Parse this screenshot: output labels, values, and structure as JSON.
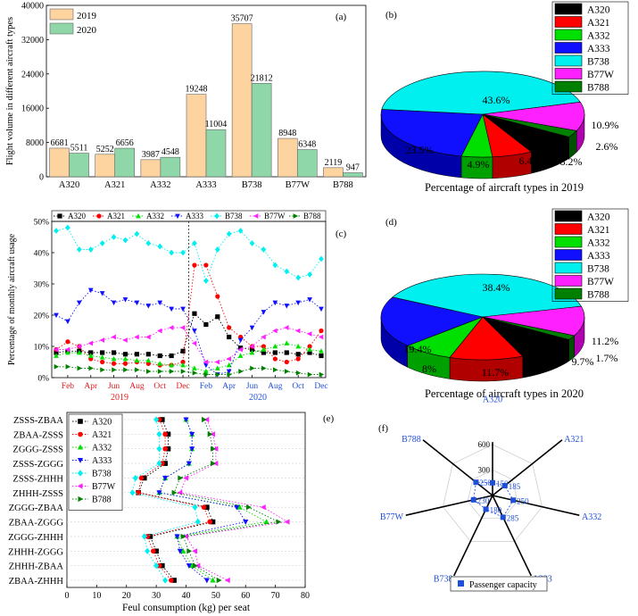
{
  "aircraft": [
    "A320",
    "A321",
    "A332",
    "A333",
    "B738",
    "B77W",
    "B788"
  ],
  "colors": {
    "bar2019": "#fdd3a0",
    "bar2020": "#8fd7a9",
    "types": {
      "A320": "#000000",
      "A321": "#ff0000",
      "A332": "#00e000",
      "A333": "#1010ff",
      "B738": "#00f0f0",
      "B77W": "#ff20ff",
      "B788": "#008000"
    },
    "radar": "#1f4fd8",
    "blueText": "#1f4fd8",
    "redText": "#e0191d"
  },
  "chart_data": [
    {
      "id": "a",
      "panel_label": "(a)",
      "type": "bar",
      "ylabel": "Flight volume in different aircraft types",
      "categories": [
        "A320",
        "A321",
        "A332",
        "A333",
        "B738",
        "B77W",
        "B788"
      ],
      "ylim": [
        0,
        40000
      ],
      "yticks": [
        "0",
        "8000",
        "16000",
        "24000",
        "32000",
        "40000"
      ],
      "series": [
        {
          "name": "2019",
          "values": [
            6681,
            5252,
            3987,
            19248,
            35707,
            8948,
            2119
          ],
          "labels": [
            "6681",
            "5252",
            "3987",
            "19248",
            "35707",
            "8948",
            "2119"
          ]
        },
        {
          "name": "2020",
          "values": [
            5511,
            6656,
            4548,
            11004,
            21812,
            6348,
            947
          ],
          "labels": [
            "5511",
            "6656",
            "4548",
            "11004",
            "21812",
            "6348",
            "947"
          ]
        }
      ]
    },
    {
      "id": "b",
      "panel_label": "(b)",
      "type": "pie",
      "title": "Percentage of aircraft types in 2019",
      "labels": [
        "A320",
        "A321",
        "A332",
        "A333",
        "B738",
        "B77W",
        "B788"
      ],
      "values": [
        8.2,
        6.4,
        4.9,
        23.5,
        43.6,
        10.9,
        2.6
      ],
      "value_labels": [
        "8.2%",
        "6.4%",
        "4.9%",
        "23.5%",
        "43.6%",
        "10.9%",
        "2.6%"
      ]
    },
    {
      "id": "c",
      "panel_label": "(c)",
      "type": "line",
      "ylabel": "Percentage of monthly aircraft usage",
      "ylim": [
        0,
        50
      ],
      "yticks": [
        "0%",
        "10%",
        "20%",
        "30%",
        "40%",
        "50%"
      ],
      "xticks": [
        "Feb",
        "Apr",
        "Jun",
        "Aug",
        "Oct",
        "Dec",
        "Feb",
        "Apr",
        "Jun",
        "Aug",
        "Oct",
        "Dec"
      ],
      "year_labels": [
        "2019",
        "2020"
      ],
      "series": [
        {
          "name": "A320",
          "values": [
            8,
            8.5,
            8.5,
            8,
            8,
            8,
            7.5,
            7.5,
            7.5,
            7,
            7,
            8.5,
            20.5,
            17,
            19.5,
            13,
            9.5,
            9,
            8,
            8,
            8,
            7.5,
            8,
            7
          ]
        },
        {
          "name": "A321",
          "values": [
            9,
            11.5,
            10,
            6,
            5,
            4.5,
            4.5,
            5,
            4.5,
            4,
            4,
            5,
            36,
            36,
            26,
            16,
            13,
            10,
            10,
            6,
            5,
            6,
            10,
            15
          ]
        },
        {
          "name": "A332",
          "values": [
            7,
            8,
            8,
            7,
            6.5,
            6,
            6,
            5.5,
            5.5,
            4.5,
            4,
            4,
            3,
            2,
            3,
            4,
            7,
            8,
            9,
            10,
            11,
            10,
            9,
            8.5
          ]
        },
        {
          "name": "A333",
          "values": [
            20,
            18,
            24,
            28,
            27,
            24,
            25,
            24,
            23,
            24,
            22,
            22,
            15,
            4,
            1,
            2,
            12,
            16,
            21,
            24,
            23,
            24,
            25,
            22
          ]
        },
        {
          "name": "B738",
          "values": [
            47,
            48,
            41,
            41,
            43,
            45,
            44,
            46,
            43,
            42,
            40,
            40,
            43,
            31,
            41,
            46,
            47,
            43,
            41,
            36,
            34,
            32,
            33,
            38
          ]
        },
        {
          "name": "B77W",
          "values": [
            9,
            9,
            10,
            11,
            12,
            13,
            12,
            13,
            13,
            15,
            16,
            16,
            11,
            5,
            5,
            6,
            9,
            10,
            13,
            15,
            16,
            15,
            14,
            13
          ]
        },
        {
          "name": "B788",
          "values": [
            3.5,
            3.5,
            3,
            3,
            2.5,
            2.5,
            2.5,
            2.5,
            2,
            2,
            2,
            2,
            1.5,
            1,
            1,
            1,
            2,
            3,
            3,
            2.5,
            2,
            1.5,
            1,
            1
          ]
        }
      ]
    },
    {
      "id": "d",
      "panel_label": "(d)",
      "type": "pie",
      "title": "Percentage of aircraft types in 2020",
      "labels": [
        "A320",
        "A321",
        "A332",
        "A333",
        "B738",
        "B77W",
        "B788"
      ],
      "values": [
        9.7,
        11.7,
        8,
        19.4,
        38.4,
        11.2,
        1.7
      ],
      "value_labels": [
        "9.7%",
        "11.7%",
        "8%",
        "19.4%",
        "38.4%",
        "11.2%",
        "1.7%"
      ]
    },
    {
      "id": "e",
      "panel_label": "(e)",
      "type": "line",
      "xlabel": "Feul consumption (kg) per seat",
      "xlim": [
        0,
        80
      ],
      "xticks": [
        "0",
        "10",
        "20",
        "30",
        "40",
        "50",
        "60",
        "70",
        "80"
      ],
      "routes": [
        "ZSSS-ZBAA",
        "ZBAA-ZSSS",
        "ZGGG-ZSSS",
        "ZSSS-ZGGG",
        "ZSSS-ZHHH",
        "ZHHH-ZSSS",
        "ZGGG-ZBAA",
        "ZBAA-ZGGG",
        "ZGGG-ZHHH",
        "ZHHH-ZGGG",
        "ZHHH-ZBAA",
        "ZBAA-ZHHH"
      ],
      "series": [
        {
          "name": "A320",
          "values": [
            32,
            34,
            34,
            33,
            26,
            24,
            47,
            49,
            28,
            30,
            32,
            36
          ]
        },
        {
          "name": "A321",
          "values": [
            31,
            33,
            33,
            32,
            25,
            24,
            46,
            48,
            27,
            29,
            31,
            35
          ]
        },
        {
          "name": "A332",
          "values": [
            40,
            42,
            42,
            41,
            33,
            31,
            58,
            67,
            37,
            39,
            42,
            49
          ]
        },
        {
          "name": "A333",
          "values": [
            40,
            42,
            42,
            41,
            33,
            31,
            57,
            60,
            37,
            38,
            41,
            47
          ]
        },
        {
          "name": "B738",
          "values": [
            30,
            31,
            31,
            31,
            23,
            22,
            43,
            44,
            26,
            27,
            30,
            33
          ]
        },
        {
          "name": "B77W",
          "values": [
            47,
            49,
            50,
            50,
            40,
            38,
            66,
            74,
            40,
            43,
            44,
            54
          ]
        },
        {
          "name": "B788",
          "values": [
            46,
            48,
            49,
            49,
            38,
            36,
            61,
            71,
            39,
            41,
            43,
            51
          ]
        }
      ]
    },
    {
      "id": "f",
      "panel_label": "(f)",
      "type": "radar",
      "axes": [
        "A320",
        "A321",
        "A332",
        "A333",
        "B738",
        "B77W",
        "B788"
      ],
      "values": [
        150,
        185,
        250,
        285,
        180,
        230,
        250
      ],
      "value_labels": [
        "150",
        "185",
        "250",
        "285",
        "180",
        "230",
        "250"
      ],
      "rmax": 600,
      "rticks": [
        "300",
        "600"
      ],
      "legend": "Passenger capacity"
    }
  ]
}
